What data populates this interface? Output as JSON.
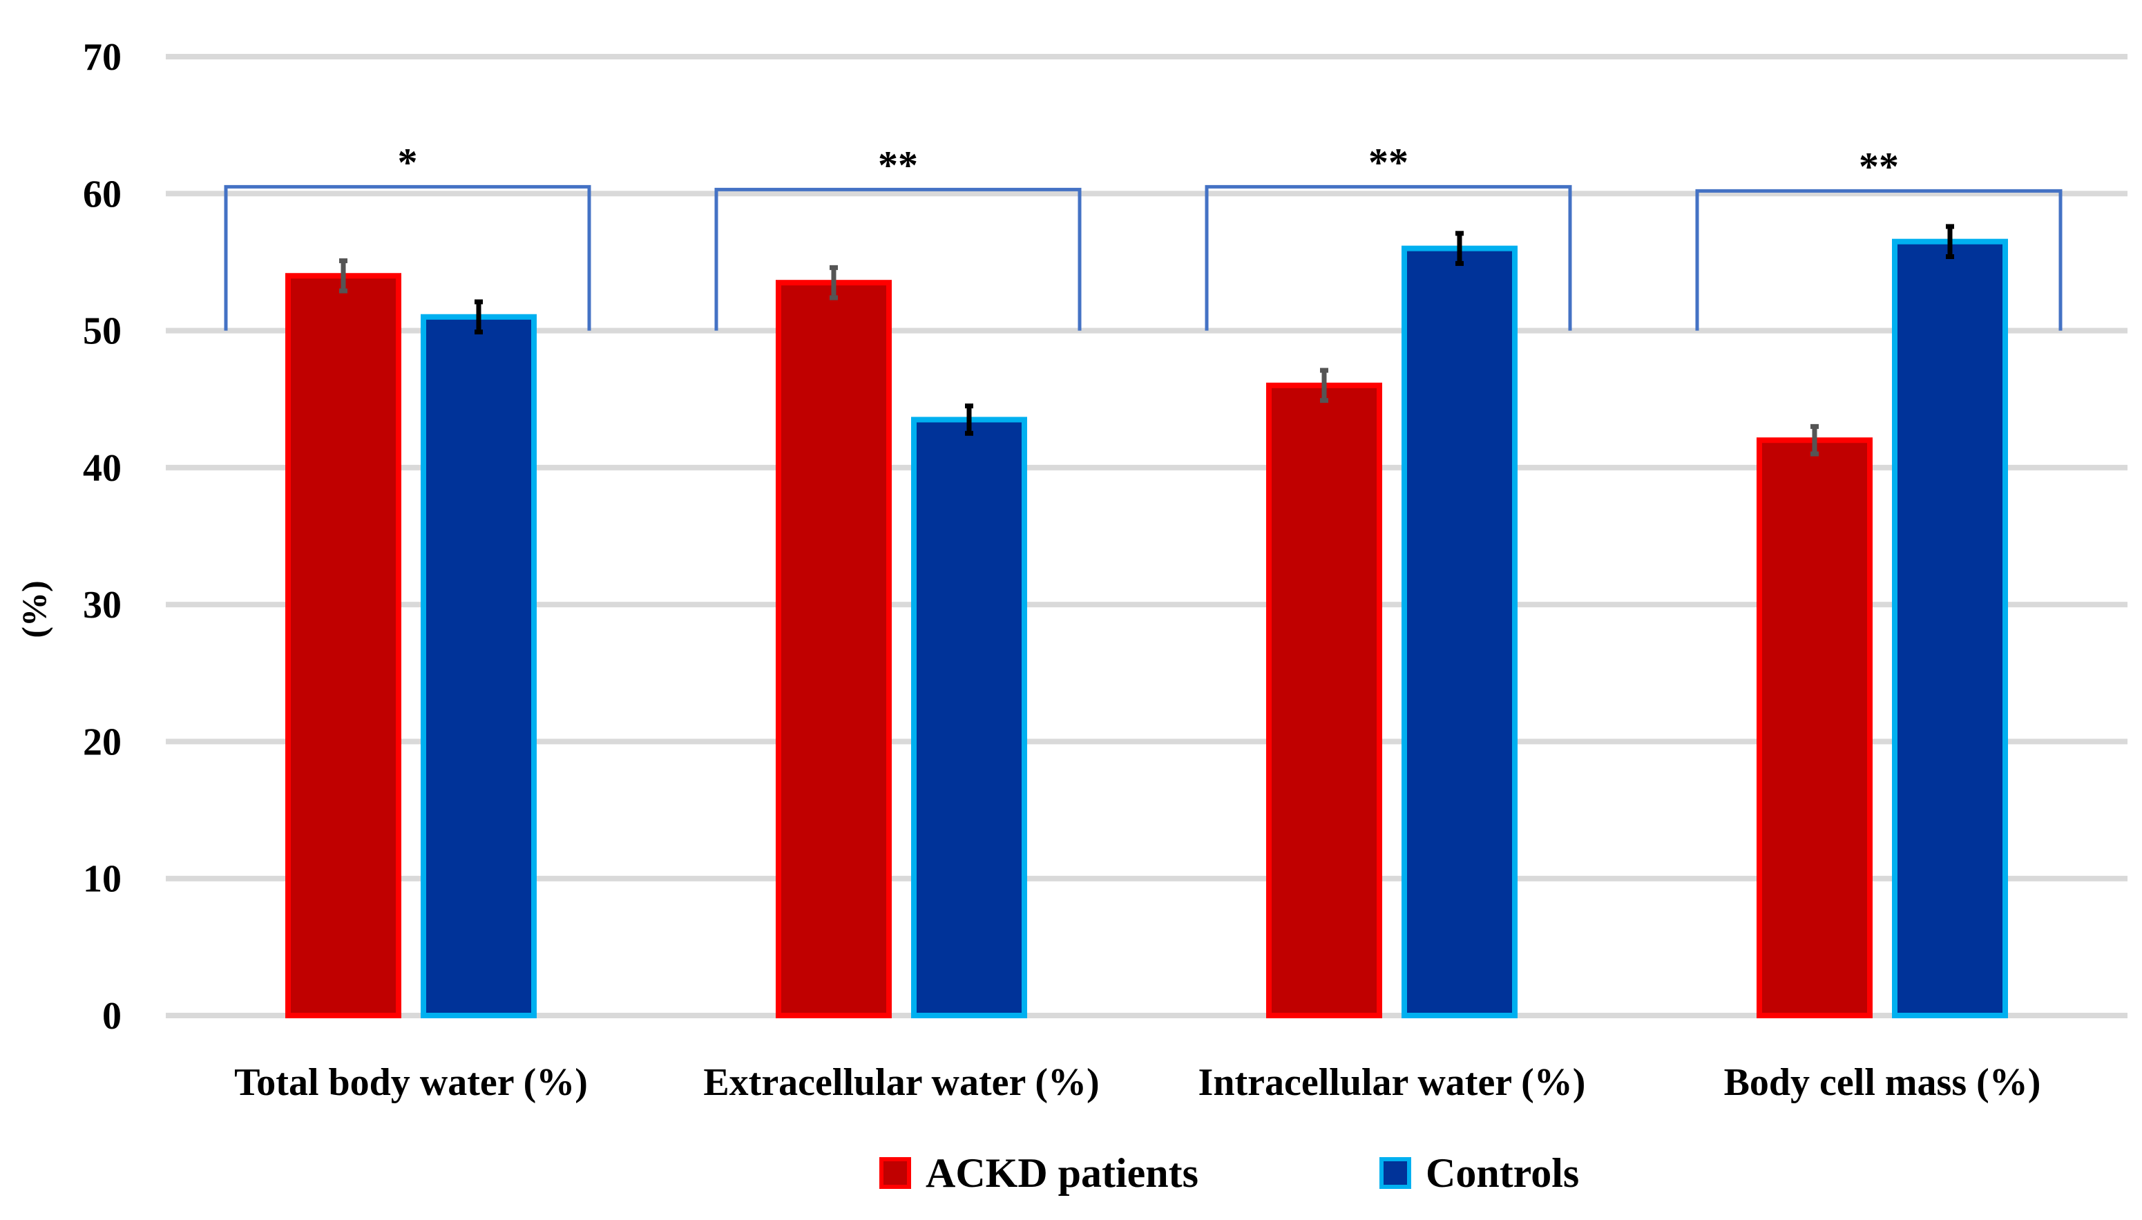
{
  "chart_data": {
    "type": "bar",
    "title": "",
    "xlabel": "",
    "ylabel": "(%)",
    "ylim": [
      0,
      70
    ],
    "yticks": [
      0,
      10,
      20,
      30,
      40,
      50,
      60,
      70
    ],
    "grid": true,
    "categories": [
      "Total body water (%)",
      "Extracellular water (%)",
      "Intracellular water (%)",
      "Body cell mass (%)"
    ],
    "series": [
      {
        "name": "ACKD patients",
        "fill": "#c00000",
        "edge": "#ff0000",
        "error_color": "#555555",
        "values": [
          54,
          53.5,
          46,
          42
        ],
        "errors": [
          1.1,
          1.1,
          1.1,
          1.0
        ]
      },
      {
        "name": "Controls",
        "fill": "#003399",
        "edge": "#00b0f0",
        "error_color": "#000000",
        "values": [
          51,
          43.5,
          56,
          56.5
        ],
        "errors": [
          1.1,
          1.0,
          1.1,
          1.1
        ]
      }
    ],
    "significance": [
      {
        "label": "*",
        "bracket_y": 60.5
      },
      {
        "label": "**",
        "bracket_y": 60.3
      },
      {
        "label": "**",
        "bracket_y": 60.5
      },
      {
        "label": "**",
        "bracket_y": 60.2
      }
    ],
    "bracket_base": 50,
    "bracket_color": "#4472c4",
    "grid_color": "#d9d9d9",
    "legend_position": "bottom"
  }
}
